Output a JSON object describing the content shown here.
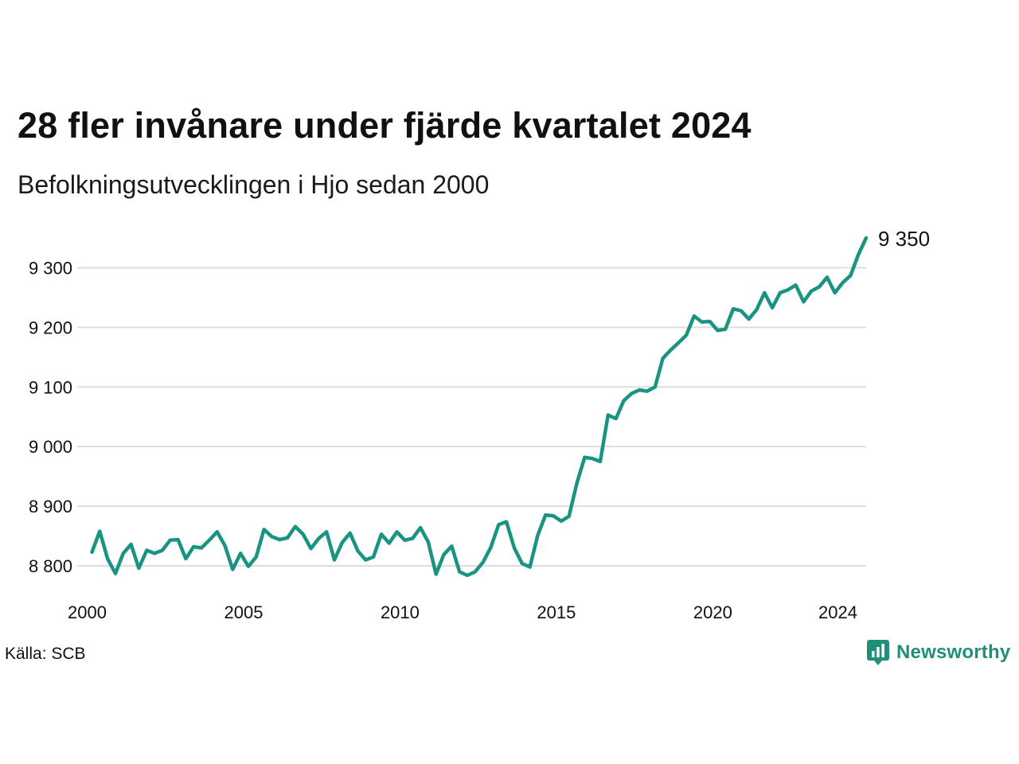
{
  "header": {
    "title": "28 fler invånare under fjärde kvartalet 2024",
    "subtitle": "Befolkningsutvecklingen i Hjo sedan 2000"
  },
  "footer": {
    "source": "Källa: SCB",
    "logo_text": "Newsworthy",
    "logo_icon": "bar-chart-speech-bubble-icon"
  },
  "colors": {
    "line": "#1a9482",
    "grid": "#dddddd",
    "logo": "#1f8f7a"
  },
  "chart_data": {
    "type": "line",
    "title": "28 fler invånare under fjärde kvartalet 2024",
    "subtitle": "Befolkningsutvecklingen i Hjo sedan 2000",
    "xlabel": "",
    "ylabel": "",
    "x_start": 2000.0,
    "x_step": 0.25,
    "xlim": [
      2000.0,
      2025.0
    ],
    "ylim": [
      8770,
      9360
    ],
    "grid": "horizontal",
    "y_ticks": [
      8800,
      8900,
      9000,
      9100,
      9200,
      9300
    ],
    "y_tick_labels": [
      "8 800",
      "8 900",
      "9 000",
      "9 100",
      "9 200",
      "9 300"
    ],
    "x_ticks": [
      2000,
      2005,
      2010,
      2015,
      2020,
      2024
    ],
    "x_tick_labels": [
      "2000",
      "2005",
      "2010",
      "2015",
      "2020",
      "2024"
    ],
    "end_label": "9 350",
    "series": [
      {
        "values": [
          8823,
          8858,
          8812,
          8787,
          8821,
          8836,
          8796,
          8826,
          8821,
          8826,
          8843,
          8844,
          8812,
          8832,
          8830,
          8843,
          8857,
          8834,
          8794,
          8821,
          8799,
          8815,
          8861,
          8849,
          8844,
          8847,
          8866,
          8853,
          8829,
          8846,
          8857,
          8810,
          8839,
          8855,
          8825,
          8810,
          8815,
          8853,
          8838,
          8857,
          8843,
          8846,
          8864,
          8840,
          8786,
          8819,
          8833,
          8790,
          8784,
          8790,
          8806,
          8831,
          8869,
          8874,
          8830,
          8804,
          8798,
          8851,
          8885,
          8884,
          8875,
          8883,
          8938,
          8982,
          8980,
          8975,
          9053,
          9047,
          9077,
          9089,
          9095,
          9093,
          9100,
          9148,
          9162,
          9174,
          9187,
          9219,
          9209,
          9210,
          9195,
          9197,
          9231,
          9228,
          9214,
          9230,
          9258,
          9233,
          9258,
          9263,
          9271,
          9243,
          9261,
          9268,
          9284,
          9258,
          9275,
          9287,
          9322,
          9350
        ]
      }
    ]
  }
}
